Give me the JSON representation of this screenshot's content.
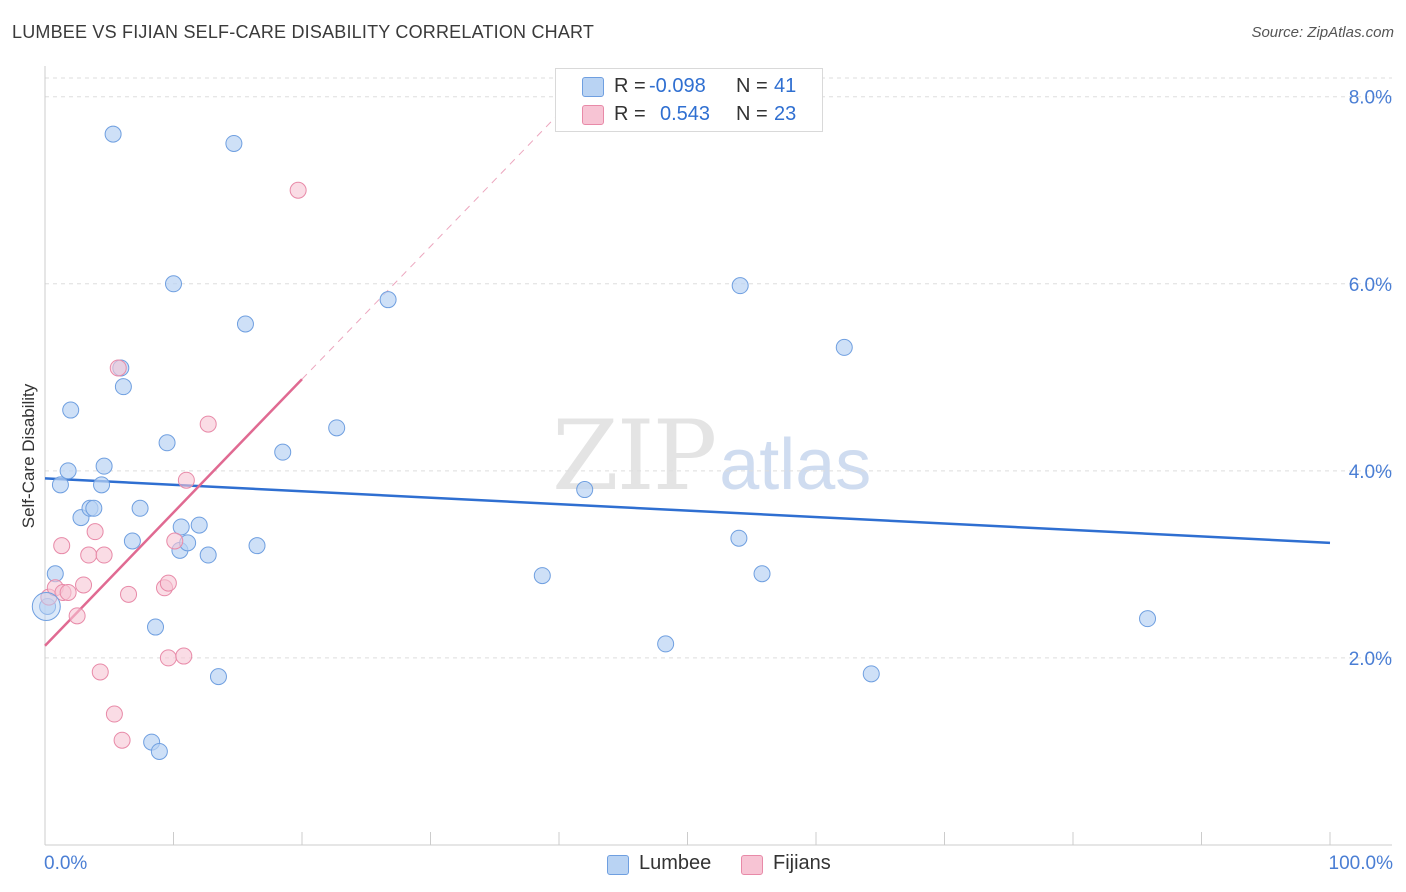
{
  "header": {
    "title": "LUMBEE VS FIJIAN SELF-CARE DISABILITY CORRELATION CHART",
    "source": "Source: ZipAtlas.com"
  },
  "watermark": {
    "zip": "ZIP",
    "atlas": "atlas"
  },
  "stats": {
    "lumbee": {
      "r_label": "R =",
      "r_value": "-0.098",
      "n_label": "N =",
      "n_value": "41"
    },
    "fijians": {
      "r_label": "R =",
      "r_value": "0.543",
      "n_label": "N =",
      "n_value": "23"
    }
  },
  "legend": {
    "lumbee": "Lumbee",
    "fijians": "Fijians"
  },
  "colors": {
    "lumbee_fill": "#b9d3f3",
    "lumbee_stroke": "#6f9fe0",
    "lumbee_line": "#2f6fd1",
    "fijians_fill": "#f7c4d4",
    "fijians_stroke": "#e88aa8",
    "fijians_line": "#e06a92",
    "grid": "#dddddd",
    "tick_text": "#4a7ed4"
  },
  "chart_data": {
    "type": "scatter",
    "title": "LUMBEE VS FIJIAN SELF-CARE DISABILITY CORRELATION CHART",
    "xlabel": "",
    "ylabel": "Self-Care Disability",
    "xlim": [
      0,
      100
    ],
    "ylim": [
      0,
      8.2
    ],
    "y_ticks": [
      2.0,
      4.0,
      6.0,
      8.0
    ],
    "y_tick_labels": [
      "2.0%",
      "4.0%",
      "6.0%",
      "8.0%"
    ],
    "x_tick_labels": {
      "min": "0.0%",
      "max": "100.0%"
    },
    "grid": true,
    "series": [
      {
        "name": "Lumbee",
        "points": [
          [
            0.2,
            2.55
          ],
          [
            0.8,
            2.9
          ],
          [
            1.2,
            3.85
          ],
          [
            1.8,
            4.0
          ],
          [
            2.0,
            4.65
          ],
          [
            2.8,
            3.5
          ],
          [
            3.5,
            3.6
          ],
          [
            3.8,
            3.6
          ],
          [
            4.4,
            3.85
          ],
          [
            4.6,
            4.05
          ],
          [
            5.3,
            7.6
          ],
          [
            5.9,
            5.1
          ],
          [
            6.1,
            4.9
          ],
          [
            6.8,
            3.25
          ],
          [
            7.4,
            3.6
          ],
          [
            8.3,
            1.1
          ],
          [
            8.6,
            2.33
          ],
          [
            8.9,
            1.0
          ],
          [
            9.5,
            4.3
          ],
          [
            10.0,
            6.0
          ],
          [
            10.5,
            3.15
          ],
          [
            10.6,
            3.4
          ],
          [
            11.1,
            3.23
          ],
          [
            12.0,
            3.42
          ],
          [
            12.7,
            3.1
          ],
          [
            13.5,
            1.8
          ],
          [
            14.7,
            7.5
          ],
          [
            15.6,
            5.57
          ],
          [
            16.5,
            3.2
          ],
          [
            18.5,
            4.2
          ],
          [
            22.7,
            4.46
          ],
          [
            26.7,
            5.83
          ],
          [
            38.7,
            2.88
          ],
          [
            42.0,
            3.8
          ],
          [
            48.3,
            2.15
          ],
          [
            54.0,
            3.28
          ],
          [
            54.1,
            5.98
          ],
          [
            55.8,
            2.9
          ],
          [
            62.2,
            5.32
          ],
          [
            64.3,
            1.83
          ],
          [
            85.8,
            2.42
          ]
        ]
      },
      {
        "name": "Fijians",
        "points": [
          [
            0.3,
            2.65
          ],
          [
            0.8,
            2.75
          ],
          [
            1.3,
            3.2
          ],
          [
            1.4,
            2.7
          ],
          [
            1.8,
            2.7
          ],
          [
            2.5,
            2.45
          ],
          [
            3.0,
            2.78
          ],
          [
            3.4,
            3.1
          ],
          [
            3.9,
            3.35
          ],
          [
            4.3,
            1.85
          ],
          [
            4.6,
            3.1
          ],
          [
            5.4,
            1.4
          ],
          [
            5.7,
            5.1
          ],
          [
            6.0,
            1.12
          ],
          [
            6.5,
            2.68
          ],
          [
            9.3,
            2.75
          ],
          [
            9.6,
            2.8
          ],
          [
            9.6,
            2.0
          ],
          [
            10.1,
            3.25
          ],
          [
            10.8,
            2.02
          ],
          [
            11.0,
            3.9
          ],
          [
            12.7,
            4.5
          ],
          [
            19.7,
            7.0
          ]
        ]
      }
    ],
    "trendlines": [
      {
        "name": "Lumbee",
        "x": [
          0,
          100
        ],
        "y": [
          3.92,
          3.23
        ],
        "style": "solid"
      },
      {
        "name": "Fijians",
        "x": [
          0,
          20
        ],
        "y": [
          2.13,
          4.98
        ],
        "style": "solid"
      },
      {
        "name": "Fijians",
        "x": [
          20,
          40
        ],
        "y": [
          4.98,
          7.82
        ],
        "style": "dashed"
      }
    ]
  }
}
